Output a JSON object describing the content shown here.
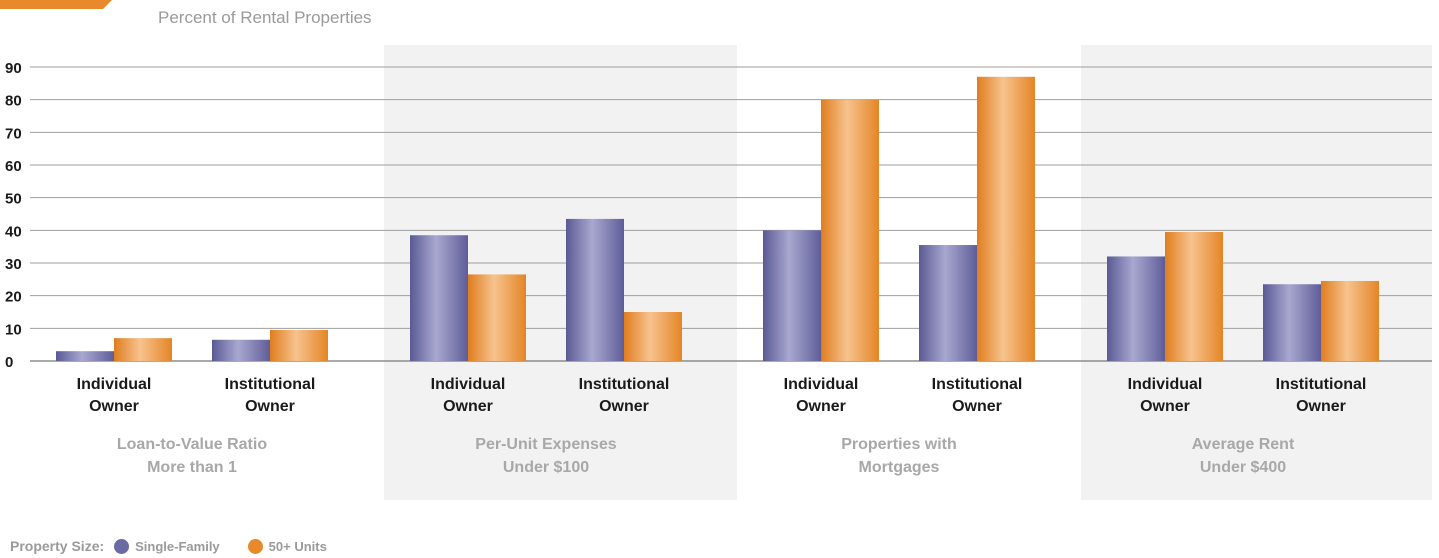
{
  "chart_data": {
    "type": "bar",
    "ylabel": "Percent of Rental Properties",
    "ylim": [
      0,
      90
    ],
    "yticks": [
      "0",
      "10",
      "20",
      "30",
      "40",
      "50",
      "60",
      "70",
      "80",
      "90"
    ],
    "grid": true,
    "legend_title": "Property Size:",
    "legend_placement": "bottom-left",
    "series": [
      {
        "name": "Single-Family",
        "color": "#6c6aa4"
      },
      {
        "name": "50+ Units",
        "color": "#e8892b"
      }
    ],
    "groups": [
      {
        "label_lines": [
          "Loan-to-Value Ratio",
          "More than 1"
        ],
        "shaded": false,
        "categories": [
          {
            "label_lines": [
              "Individual",
              "Owner"
            ],
            "values": [
              3,
              7
            ]
          },
          {
            "label_lines": [
              "Institutional",
              "Owner"
            ],
            "values": [
              6.5,
              9.5
            ]
          }
        ]
      },
      {
        "label_lines": [
          "Per-Unit Expenses",
          "Under $100"
        ],
        "shaded": true,
        "categories": [
          {
            "label_lines": [
              "Individual",
              "Owner"
            ],
            "values": [
              38.5,
              26.5
            ]
          },
          {
            "label_lines": [
              "Institutional",
              "Owner"
            ],
            "values": [
              43.5,
              15
            ]
          }
        ]
      },
      {
        "label_lines": [
          "Properties with",
          "Mortgages"
        ],
        "shaded": false,
        "categories": [
          {
            "label_lines": [
              "Individual",
              "Owner"
            ],
            "values": [
              40,
              80
            ]
          },
          {
            "label_lines": [
              "Institutional",
              "Owner"
            ],
            "values": [
              35.5,
              87
            ]
          }
        ]
      },
      {
        "label_lines": [
          "Average Rent",
          "Under $400"
        ],
        "shaded": true,
        "categories": [
          {
            "label_lines": [
              "Individual",
              "Owner"
            ],
            "values": [
              32,
              39.5
            ]
          },
          {
            "label_lines": [
              "Institutional",
              "Owner"
            ],
            "values": [
              23.5,
              24.5
            ]
          }
        ]
      }
    ]
  }
}
